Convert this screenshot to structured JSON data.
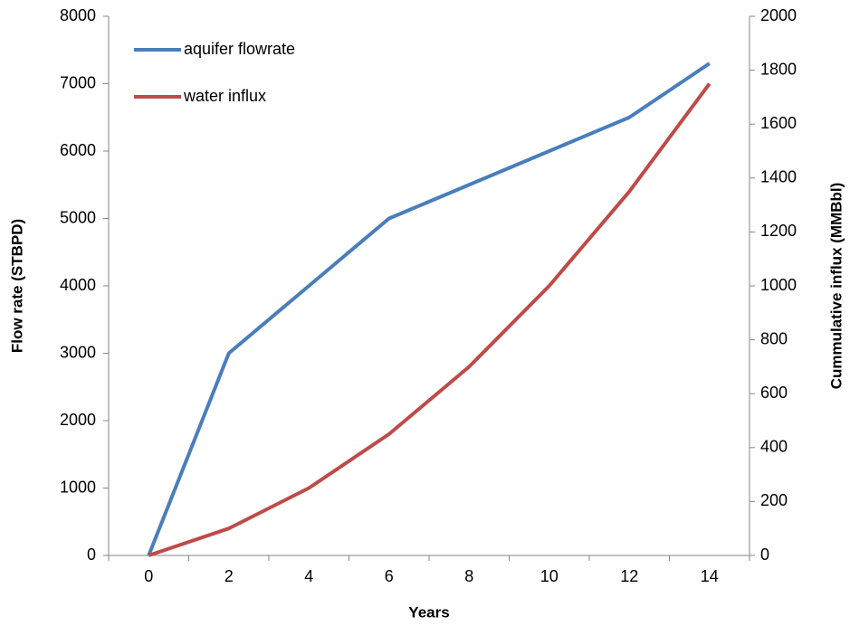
{
  "chart_data": {
    "type": "line",
    "categories": [
      "0",
      "2",
      "4",
      "6",
      "8",
      "10",
      "12",
      "14"
    ],
    "series": [
      {
        "name": "aquifer flowrate",
        "color": "#4a7ebb",
        "values": [
          0,
          3000,
          4000,
          5000,
          5500,
          6000,
          6500,
          7300
        ]
      },
      {
        "name": "water influx",
        "color": "#be4b48",
        "axis": "y2",
        "values": [
          0,
          100,
          250,
          450,
          700,
          1000,
          1350,
          1750
        ]
      }
    ],
    "xlabel": "Years",
    "ylabel": "Flow rate (STBPD)",
    "y2label": "Cummulative influx (MMBbl)",
    "ylim": [
      0,
      8000
    ],
    "yticks": [
      0,
      1000,
      2000,
      3000,
      4000,
      5000,
      6000,
      7000,
      8000
    ],
    "y2lim": [
      0,
      2000
    ],
    "y2ticks": [
      0,
      200,
      400,
      600,
      800,
      1000,
      1200,
      1400,
      1600,
      1800,
      2000
    ],
    "grid": false,
    "legend": "upper left"
  }
}
